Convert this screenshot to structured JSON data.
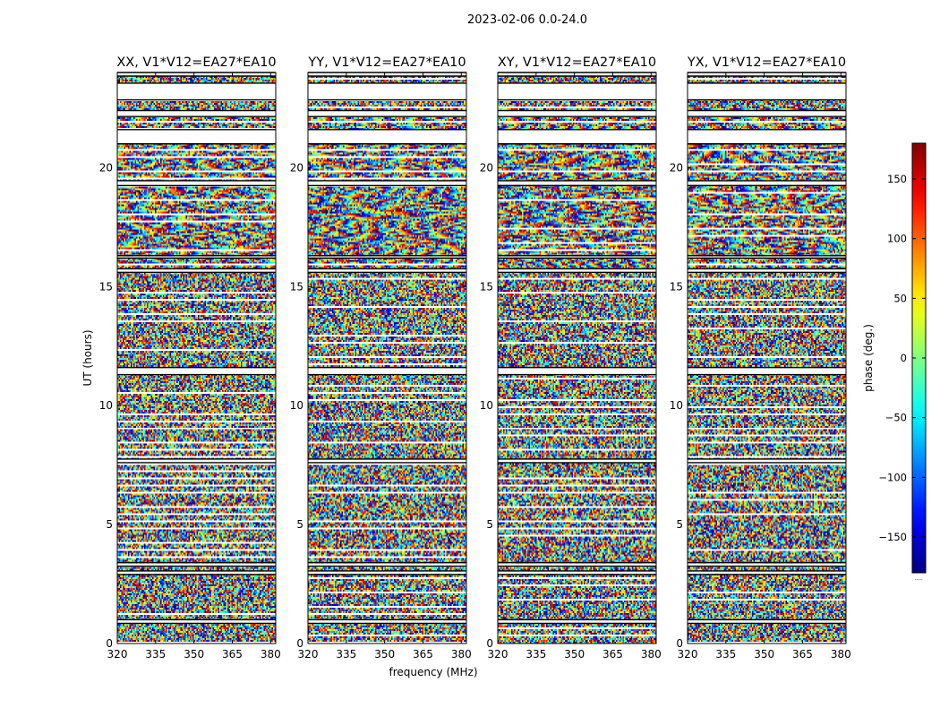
{
  "suptitle": "2023-02-06 0.0-24.0",
  "chart_data": {
    "type": "heatmap",
    "title": "2023-02-06 0.0-24.0",
    "xlabel": "frequency (MHz)",
    "ylabel": "UT (hours)",
    "xlim": [
      320,
      382
    ],
    "ylim": [
      0,
      24
    ],
    "xticks": [
      320,
      335,
      350,
      365,
      380
    ],
    "yticks": [
      0,
      5,
      10,
      15,
      20
    ],
    "panels": [
      {
        "title": "XX, V1*V12=EA27*EA10",
        "pol": "XX",
        "seed": 11
      },
      {
        "title": "YY, V1*V12=EA27*EA10",
        "pol": "YY",
        "seed": 23
      },
      {
        "title": "XY, V1*V12=EA27*EA10",
        "pol": "XY",
        "seed": 37
      },
      {
        "title": "YX, V1*V12=EA27*EA10",
        "pol": "YX",
        "seed": 53
      }
    ],
    "flagged_time_bands_hours": [
      [
        0.85,
        1.0
      ],
      [
        2.9,
        3.05
      ],
      [
        3.25,
        3.4
      ],
      [
        7.6,
        7.75
      ],
      [
        11.3,
        11.6
      ],
      [
        15.6,
        15.75
      ],
      [
        16.2,
        16.3
      ],
      [
        19.25,
        19.45
      ],
      [
        21.0,
        21.6
      ],
      [
        22.15,
        22.4
      ],
      [
        22.85,
        23.55
      ],
      [
        23.85,
        24.0
      ]
    ],
    "colorbar": {
      "label": "phase (deg.)",
      "vmin": -180,
      "vmax": 180,
      "ticks": [
        150,
        100,
        50,
        0,
        -50,
        -100,
        -150
      ],
      "tick_labels": [
        "150",
        "100",
        "50",
        "0",
        "−50",
        "−100",
        "−150"
      ],
      "colormap": "jet",
      "footer": "....."
    }
  }
}
